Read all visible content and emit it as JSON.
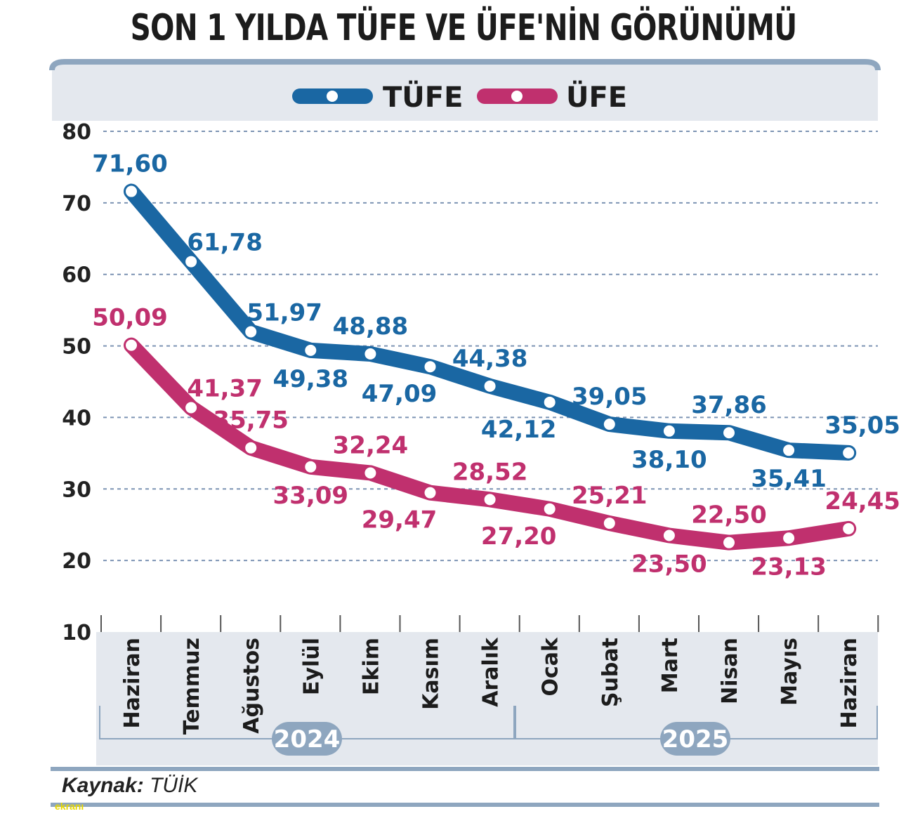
{
  "title": "SON 1 YILDA TÜFE VE ÜFE'NİN GÖRÜNÜMÜ",
  "source_label": "Kaynak:",
  "source_value": "TÜİK",
  "watermark": "ekranı",
  "colors": {
    "tufe": "#1a67a3",
    "ufe": "#c0306e",
    "panel": "#e4e8ee",
    "frame": "#8ea6bf",
    "grid": "#7c93b3",
    "year_badge": "#8ea6bf"
  },
  "chart_data": {
    "type": "line",
    "title": "SON 1 YILDA TÜFE VE ÜFE'NİN GÖRÜNÜMÜ",
    "categories": [
      "Haziran",
      "Temmuz",
      "Ağustos",
      "Eylül",
      "Ekim",
      "Kasım",
      "Aralık",
      "Ocak",
      "Şubat",
      "Mart",
      "Nisan",
      "Mayıs",
      "Haziran"
    ],
    "years": [
      {
        "label": "2024",
        "from": 0,
        "to": 6
      },
      {
        "label": "2025",
        "from": 7,
        "to": 12
      }
    ],
    "series": [
      {
        "name": "TÜFE",
        "values": [
          71.6,
          61.78,
          51.97,
          49.38,
          48.88,
          47.09,
          44.38,
          42.12,
          39.05,
          38.1,
          37.86,
          35.41,
          35.05
        ],
        "labels": [
          "71,60",
          "61,78",
          "51,97",
          "49,38",
          "48,88",
          "47,09",
          "44,38",
          "42,12",
          "39,05",
          "38,10",
          "37,86",
          "35,41",
          "35,05"
        ],
        "label_pos": [
          "above",
          "above-right",
          "above-right",
          "below",
          "above",
          "below-left",
          "above",
          "below-left",
          "above",
          "below",
          "above",
          "below",
          "above"
        ]
      },
      {
        "name": "ÜFE",
        "values": [
          50.09,
          41.37,
          35.75,
          33.09,
          32.24,
          29.47,
          28.52,
          27.2,
          25.21,
          23.5,
          22.5,
          23.13,
          24.45
        ],
        "labels": [
          "50,09",
          "41,37",
          "35,75",
          "33,09",
          "32,24",
          "29,47",
          "28,52",
          "27,20",
          "25,21",
          "23,50",
          "22,50",
          "23,13",
          "24,45"
        ],
        "label_pos": [
          "above",
          "above-right",
          "above",
          "below",
          "above",
          "below-left",
          "above",
          "below-left",
          "above",
          "below",
          "above",
          "below",
          "above"
        ]
      }
    ],
    "yticks": [
      "80",
      "70",
      "60",
      "50",
      "40",
      "30",
      "20",
      "10"
    ],
    "ylim": [
      10,
      80
    ],
    "grid": true,
    "legend": "top"
  }
}
